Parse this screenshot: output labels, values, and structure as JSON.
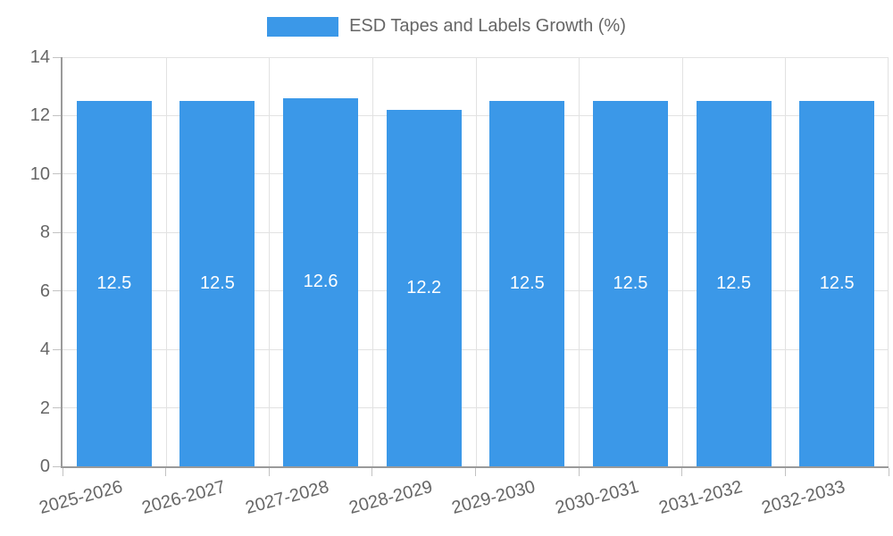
{
  "chart_data": {
    "type": "bar",
    "title": "",
    "legend": "ESD Tapes and Labels Growth (%)",
    "legend_position": "top",
    "categories": [
      "2025-2026",
      "2026-2027",
      "2027-2028",
      "2028-2029",
      "2029-2030",
      "2030-2031",
      "2031-2032",
      "2032-2033"
    ],
    "values": [
      12.5,
      12.5,
      12.6,
      12.2,
      12.5,
      12.5,
      12.5,
      12.5
    ],
    "bar_labels": [
      "12.5",
      "12.5",
      "12.6",
      "12.2",
      "12.5",
      "12.5",
      "12.5",
      "12.5"
    ],
    "xlabel": "",
    "ylabel": "",
    "ylim": [
      0,
      14
    ],
    "yticks": [
      0,
      2,
      4,
      6,
      8,
      10,
      12,
      14
    ],
    "grid": true,
    "colors": {
      "bar": "#3b98e8",
      "axis": "#9a9a9a",
      "grid": "#e2e2e2",
      "tick": "#c2c2c2",
      "axis_text": "#666666",
      "legend_text": "#666666",
      "value_text": "#ffffff",
      "background": "#ffffff"
    }
  }
}
